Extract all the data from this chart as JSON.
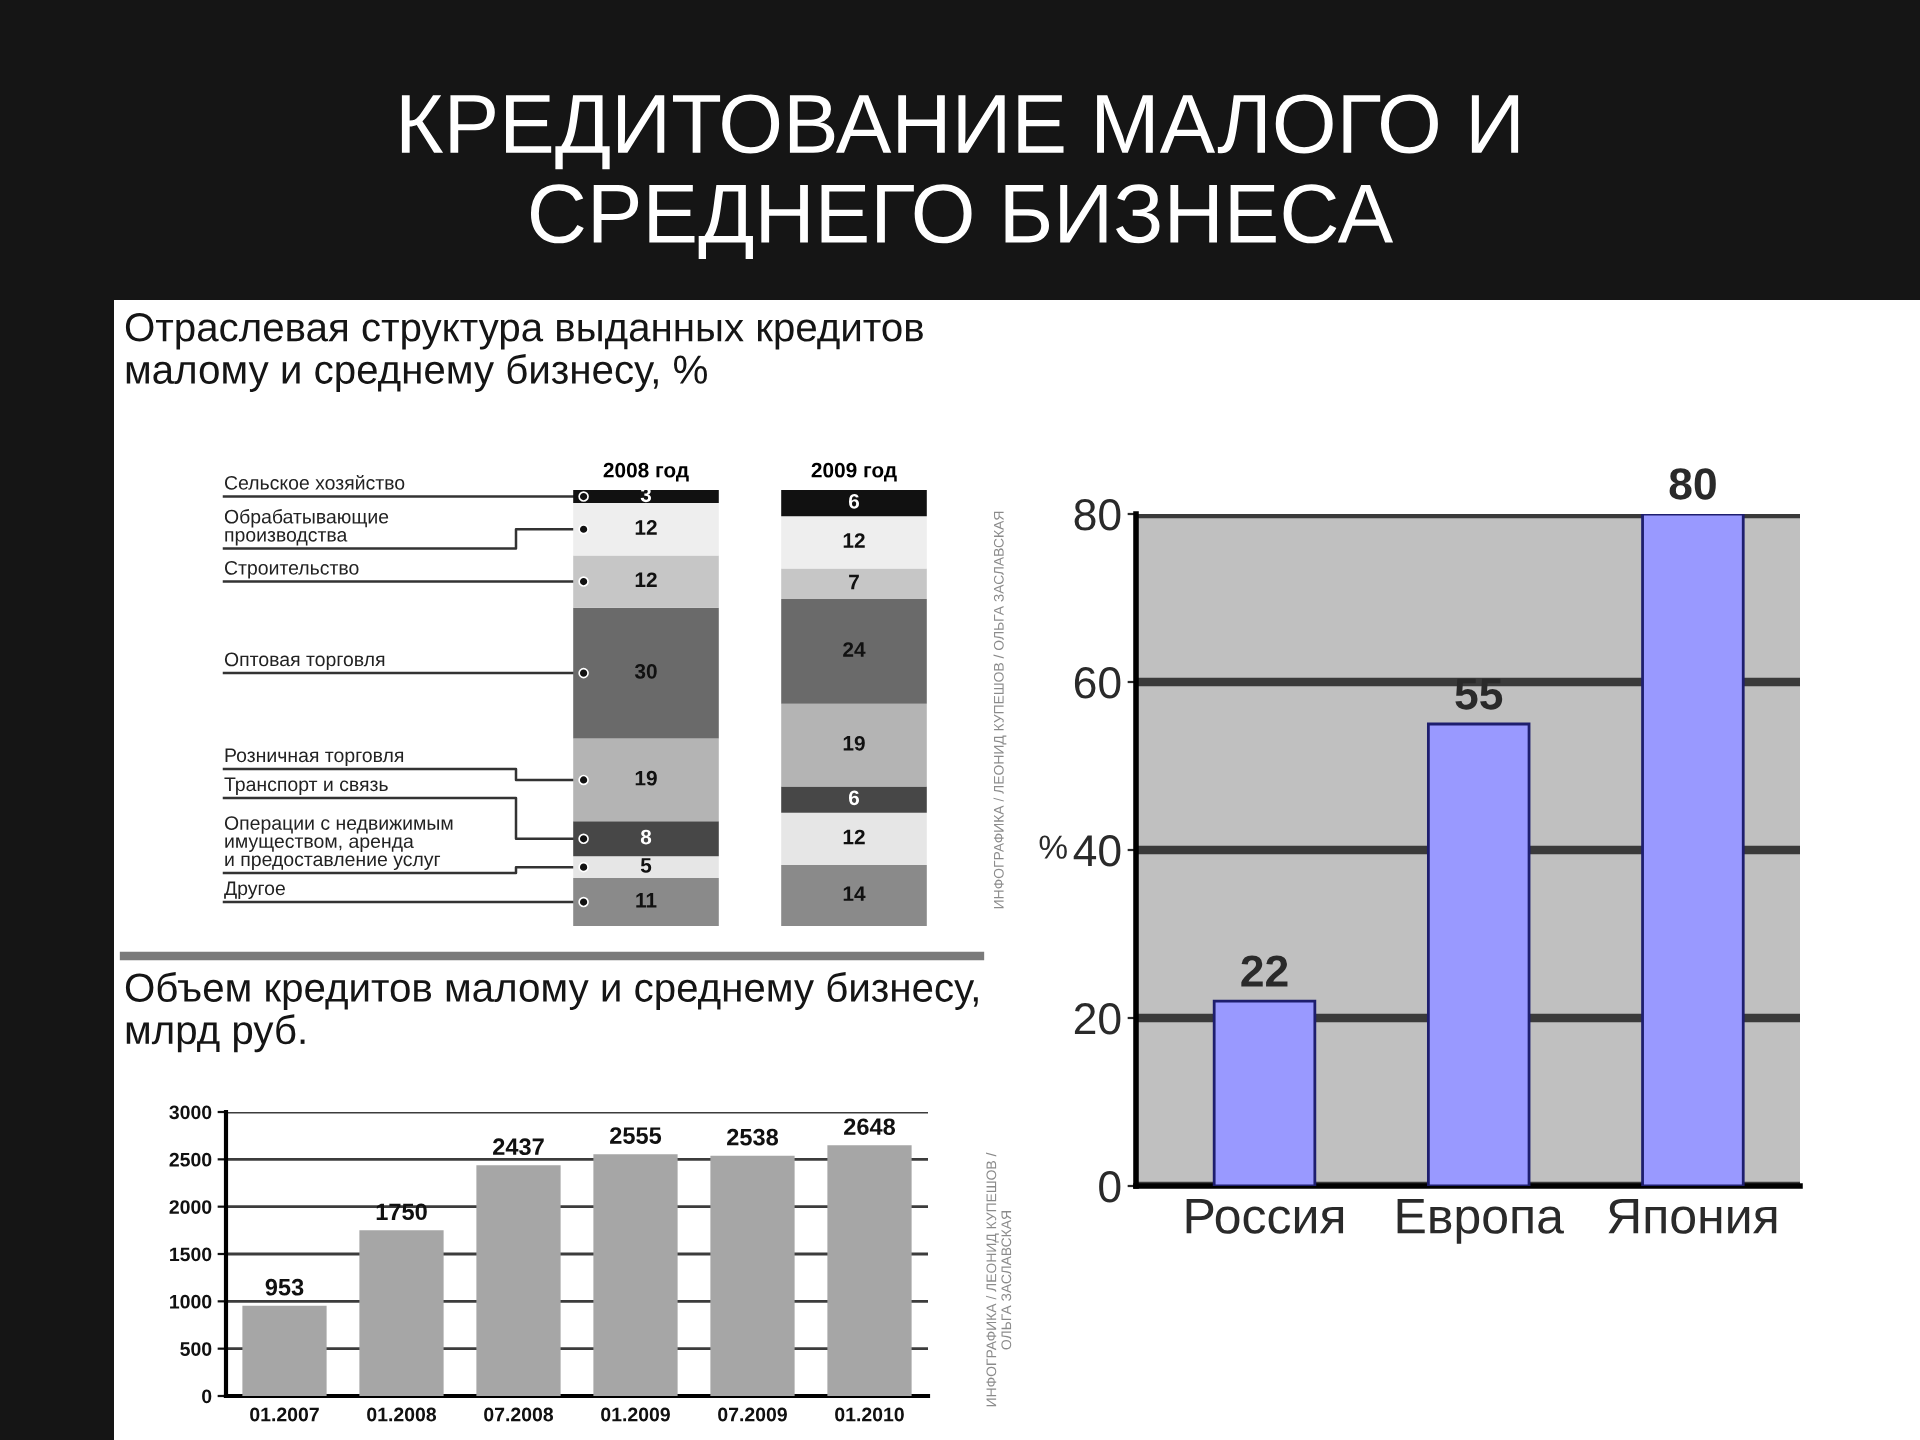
{
  "chart_data": [
    {
      "type": "bar",
      "stacked": true,
      "title": "Отраслевая структура выданных кредитов\nмалому и среднему бизнесу, %",
      "categories": [
        "2008 год",
        "2009 год"
      ],
      "series": [
        {
          "name": "Другое",
          "color": "#8a8a8a",
          "values": [
            11,
            14
          ]
        },
        {
          "name": "Операции с недвижимым\nимуществом, аренда\nи предоставление услуг",
          "color": "#e6e6e6",
          "values": [
            5,
            12
          ]
        },
        {
          "name": "Транспорт и связь",
          "color": "#474747",
          "values": [
            8,
            6
          ]
        },
        {
          "name": "Розничная торговля",
          "color": "#b4b4b4",
          "values": [
            19,
            19
          ]
        },
        {
          "name": "Оптовая торговля",
          "color": "#6a6a6a",
          "values": [
            30,
            24
          ]
        },
        {
          "name": "Строительство",
          "color": "#c6c6c6",
          "values": [
            12,
            7
          ]
        },
        {
          "name": "Обрабатывающие\nпроизводства",
          "color": "#eeeeee",
          "values": [
            12,
            12
          ]
        },
        {
          "name": "Сельское хозяйство",
          "color": "#111111",
          "values": [
            3,
            6
          ]
        }
      ],
      "data_labels": true,
      "annotations": [
        "КРЕДИТОВАНИЕ МАЛОГО И\nСРЕДНЕГО БИЗНЕСА",
        "ИНФОГРАФИКА / ЛЕОНИД КУПЕШОВ / ОЛЬГА ЗАСЛАВСКАЯ"
      ]
    },
    {
      "type": "bar",
      "title": "Объем кредитов малому и среднему бизнесу,\nмлрд руб.",
      "categories": [
        "01.2007",
        "01.2008",
        "07.2008",
        "01.2009",
        "07.2009",
        "01.2010"
      ],
      "values": [
        953,
        1750,
        2437,
        2555,
        2538,
        2648
      ],
      "color": "#a6a6a6",
      "ylim": [
        0,
        3000
      ],
      "yticks": [
        0,
        500,
        1000,
        1500,
        2000,
        2500,
        3000
      ],
      "grid": "y",
      "data_labels": true,
      "annotations": [
        "ИНФОГРАФИКА / ЛЕОНИД КУПЕШОВ /\nОЛЬГА ЗАСЛАВСКАЯ"
      ]
    },
    {
      "type": "bar",
      "categories": [
        "Россия",
        "Европа",
        "Япония"
      ],
      "values": [
        22,
        55,
        80
      ],
      "color": "#9999ff",
      "ylabel": "%",
      "ylim": [
        0,
        80
      ],
      "yticks": [
        0,
        20,
        40,
        60,
        80
      ],
      "grid": "y",
      "data_labels": true
    }
  ]
}
